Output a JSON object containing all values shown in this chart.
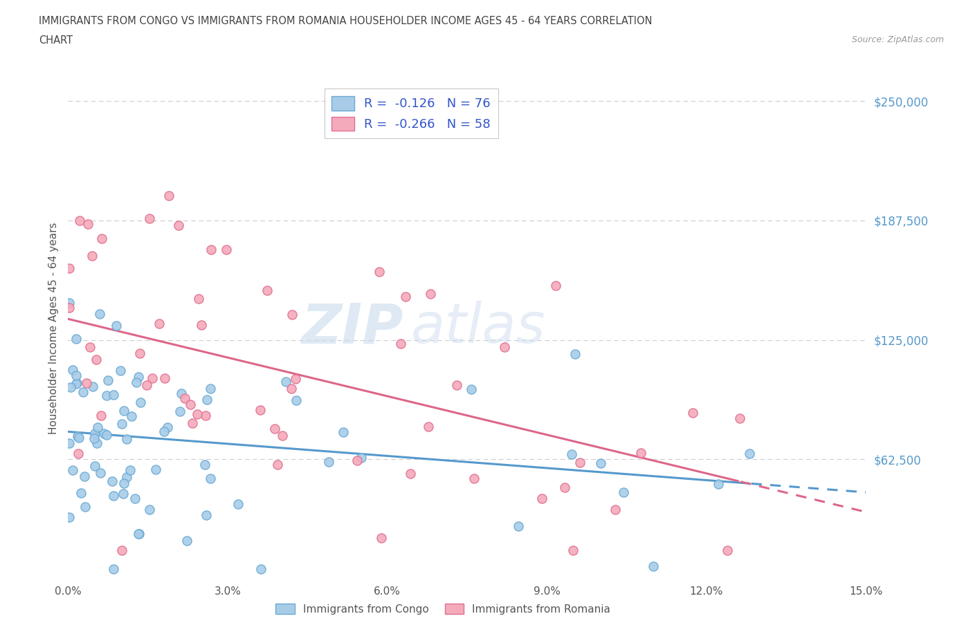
{
  "title_line1": "IMMIGRANTS FROM CONGO VS IMMIGRANTS FROM ROMANIA HOUSEHOLDER INCOME AGES 45 - 64 YEARS CORRELATION",
  "title_line2": "CHART",
  "source": "Source: ZipAtlas.com",
  "ylabel": "Householder Income Ages 45 - 64 years",
  "xlim": [
    0.0,
    0.15
  ],
  "ylim": [
    0,
    262500
  ],
  "yticks": [
    0,
    62500,
    125000,
    187500,
    250000
  ],
  "ytick_labels": [
    "",
    "$62,500",
    "$125,000",
    "$187,500",
    "$250,000"
  ],
  "xticks": [
    0.0,
    0.03,
    0.06,
    0.09,
    0.12,
    0.15
  ],
  "xtick_labels": [
    "0.0%",
    "3.0%",
    "6.0%",
    "9.0%",
    "12.0%",
    "15.0%"
  ],
  "grid_color": "#cccccc",
  "background_color": "#ffffff",
  "congo_color": "#a8cce8",
  "congo_edge": "#6aaad4",
  "romania_color": "#f4aabb",
  "romania_edge": "#e07090",
  "trend_color_congo": "#5599cc",
  "trend_color_romania": "#dd6688",
  "watermark_zip": "ZIP",
  "watermark_atlas": "atlas",
  "legend_R_N_color": "#3355cc",
  "congo_R": -0.126,
  "congo_N": 76,
  "romania_R": -0.266,
  "romania_N": 58
}
